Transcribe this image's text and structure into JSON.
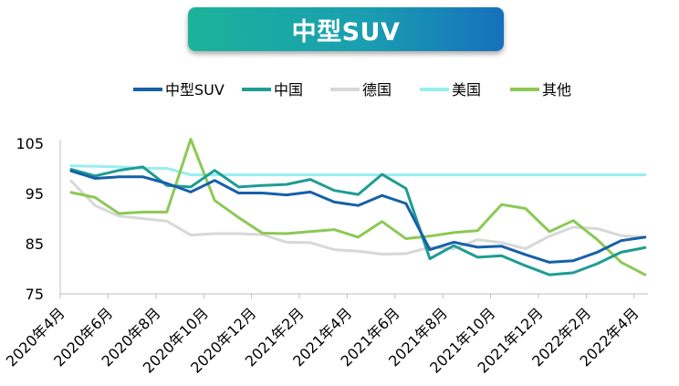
{
  "chart_data": {
    "type": "line",
    "title": "中型SUV",
    "xlabel": "",
    "ylabel": "",
    "ylim": [
      75,
      105
    ],
    "y_ticks": [
      75,
      85,
      95,
      105
    ],
    "grid": false,
    "legend_position": "top",
    "x": [
      "2020年4月",
      "2020年5月",
      "2020年6月",
      "2020年7月",
      "2020年8月",
      "2020年9月",
      "2020年10月",
      "2020年11月",
      "2020年12月",
      "2021年1月",
      "2021年2月",
      "2021年3月",
      "2021年4月",
      "2021年5月",
      "2021年6月",
      "2021年7月",
      "2021年8月",
      "2021年9月",
      "2021年10月",
      "2021年11月",
      "2021年12月",
      "2022年1月",
      "2022年2月",
      "2022年3月",
      "2022年4月"
    ],
    "x_tick_labels": [
      "2020年4月",
      "2020年6月",
      "2020年8月",
      "2020年10月",
      "2020年12月",
      "2021年2月",
      "2021年4月",
      "2021年6月",
      "2021年8月",
      "2021年10月",
      "2021年12月",
      "2022年2月",
      "2022年4月"
    ],
    "series": [
      {
        "name": "中型SUV",
        "color": "#1660a8",
        "values": [
          99.5,
          98.0,
          98.3,
          98.3,
          97.0,
          95.3,
          97.6,
          95.1,
          95.1,
          94.7,
          95.3,
          93.3,
          92.6,
          94.6,
          93.0,
          83.8,
          85.3,
          84.3,
          84.5,
          82.8,
          81.3,
          81.6,
          83.3,
          85.6,
          86.3
        ]
      },
      {
        "name": "中国",
        "color": "#1e9c94",
        "values": [
          99.8,
          98.5,
          99.6,
          100.3,
          96.6,
          96.3,
          99.6,
          96.3,
          96.6,
          96.8,
          97.8,
          95.6,
          94.8,
          98.8,
          96.0,
          82.0,
          84.6,
          82.3,
          82.6,
          80.6,
          78.8,
          79.2,
          81.0,
          83.3,
          84.2
        ]
      },
      {
        "name": "德国",
        "color": "#d8d8d8",
        "values": [
          97.5,
          92.6,
          90.5,
          90.0,
          89.5,
          86.7,
          87.0,
          87.0,
          86.8,
          85.3,
          85.2,
          83.8,
          83.5,
          82.9,
          83.0,
          84.3,
          84.0,
          85.8,
          85.2,
          84.0,
          86.5,
          88.3,
          88.0,
          86.6,
          86.3
        ]
      },
      {
        "name": "美国",
        "color": "#97eef0",
        "values": [
          100.5,
          100.4,
          100.3,
          100.0,
          100.0,
          98.7,
          98.7,
          98.7,
          98.7,
          98.7,
          98.7,
          98.7,
          98.7,
          98.7,
          98.7,
          98.7,
          98.7,
          98.7,
          98.7,
          98.7,
          98.7,
          98.7,
          98.7,
          98.7,
          98.7
        ]
      },
      {
        "name": "其他",
        "color": "#8cc954",
        "values": [
          95.2,
          94.2,
          91.0,
          91.3,
          91.3,
          105.8,
          93.6,
          90.2,
          87.1,
          87.0,
          87.4,
          87.8,
          86.3,
          89.4,
          86.0,
          86.5,
          87.2,
          87.6,
          92.8,
          92.0,
          87.4,
          89.6,
          85.8,
          81.3,
          78.8
        ]
      }
    ]
  }
}
